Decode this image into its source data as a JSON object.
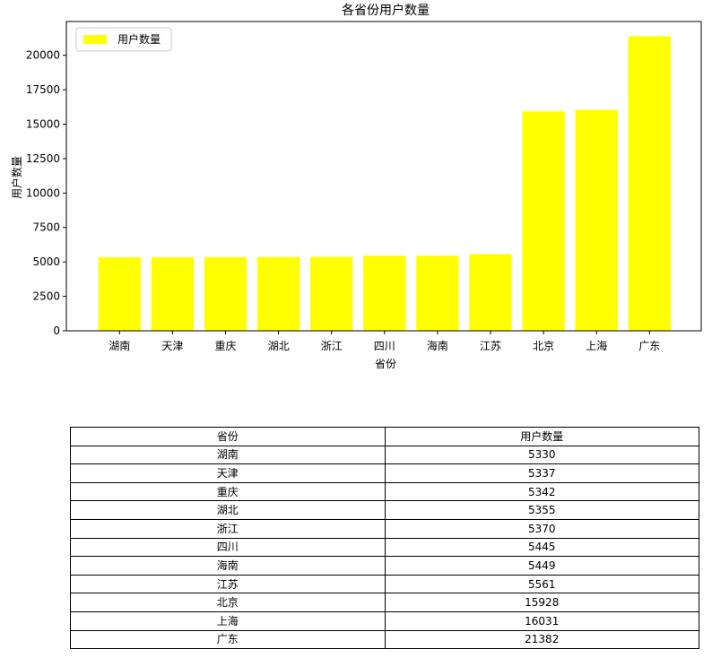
{
  "chart_data": {
    "type": "bar",
    "title": "各省份用户数量",
    "xlabel": "省份",
    "ylabel": "用户数量",
    "categories": [
      "湖南",
      "天津",
      "重庆",
      "湖北",
      "浙江",
      "四川",
      "海南",
      "江苏",
      "北京",
      "上海",
      "广东"
    ],
    "values": [
      5330,
      5337,
      5342,
      5355,
      5370,
      5445,
      5449,
      5561,
      15928,
      16031,
      21382
    ],
    "ylim": [
      0,
      22450
    ],
    "yticks": [
      0,
      2500,
      5000,
      7500,
      10000,
      12500,
      15000,
      17500,
      20000
    ],
    "legend": {
      "label": "用户数量",
      "placement": "top-left"
    },
    "bar_color": "#ffff00",
    "grid": false
  },
  "table": {
    "headers": [
      "省份",
      "用户数量"
    ],
    "rows": [
      [
        "湖南",
        "5330"
      ],
      [
        "天津",
        "5337"
      ],
      [
        "重庆",
        "5342"
      ],
      [
        "湖北",
        "5355"
      ],
      [
        "浙江",
        "5370"
      ],
      [
        "四川",
        "5445"
      ],
      [
        "海南",
        "5449"
      ],
      [
        "江苏",
        "5561"
      ],
      [
        "北京",
        "15928"
      ],
      [
        "上海",
        "16031"
      ],
      [
        "广东",
        "21382"
      ]
    ]
  }
}
